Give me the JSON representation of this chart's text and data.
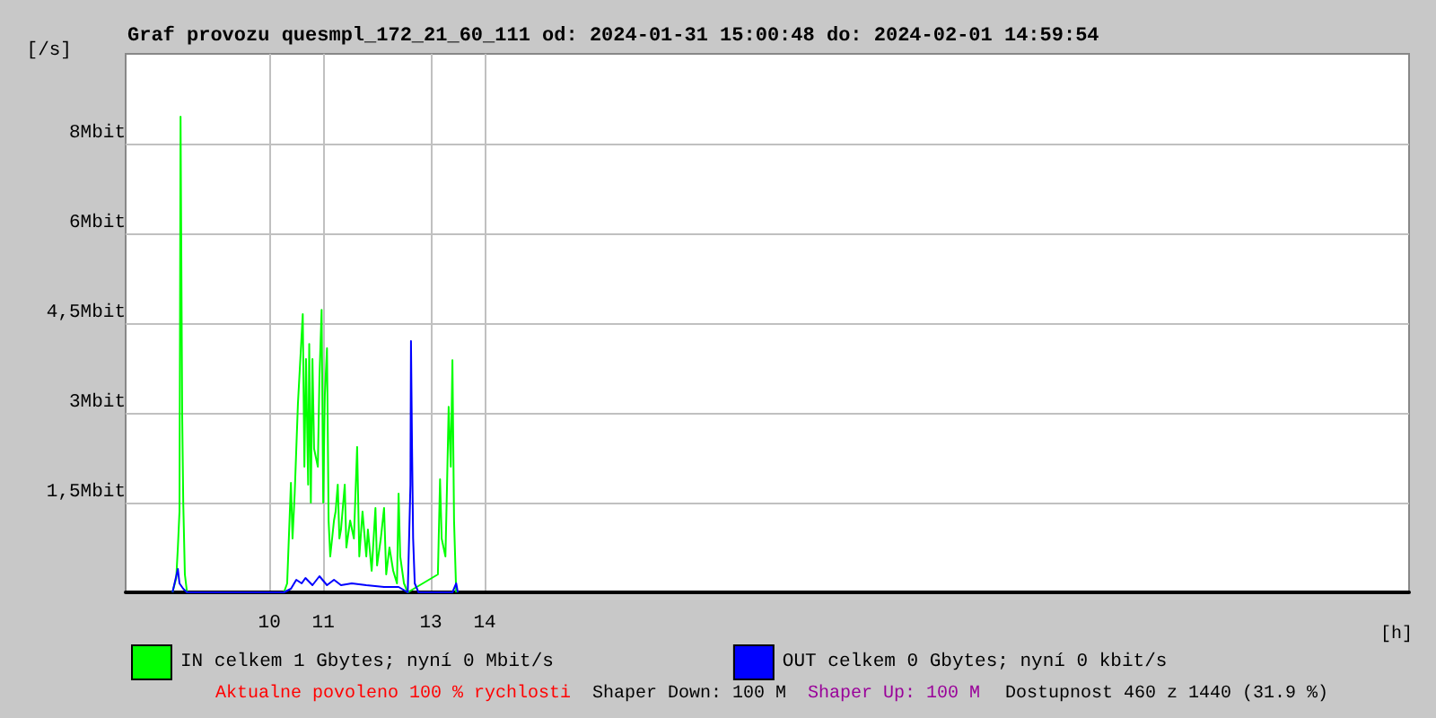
{
  "chart_data": {
    "type": "line",
    "title": "Graf provozu quesmpl_172_21_60_111 od: 2024-01-31 15:00:48 do: 2024-02-01 14:59:54",
    "xlabel": "[h]",
    "ylabel": "[/s]",
    "xlim": [
      7.33,
      31.17
    ],
    "xticks": [
      10,
      11,
      13,
      14
    ],
    "ylim": [
      0,
      9
    ],
    "yticks": [
      {
        "value": 1.5,
        "label": "1,5Mbit"
      },
      {
        "value": 3,
        "label": "3Mbit"
      },
      {
        "value": 4.5,
        "label": "4,5Mbit"
      },
      {
        "value": 6,
        "label": "6Mbit"
      },
      {
        "value": 7.5,
        "label": "8Mbit"
      }
    ],
    "grid": true,
    "legend": "bottom",
    "marker": "none",
    "line_style": "solid",
    "series": [
      {
        "name": "IN celkem 1 Gbytes; nyní 0 Mbit/s",
        "color": "#00ff00",
        "x": [
          8.2,
          8.27,
          8.3,
          8.33,
          8.35,
          8.37,
          8.38,
          8.4,
          8.43,
          8.47,
          10.27,
          10.33,
          10.4,
          10.43,
          10.47,
          10.53,
          10.62,
          10.65,
          10.68,
          10.72,
          10.74,
          10.77,
          10.8,
          10.83,
          10.9,
          10.93,
          10.97,
          11.0,
          11.03,
          11.07,
          11.1,
          11.13,
          11.2,
          11.23,
          11.27,
          11.3,
          11.33,
          11.4,
          11.43,
          11.5,
          11.57,
          11.63,
          11.67,
          11.73,
          11.8,
          11.83,
          11.9,
          11.97,
          12.0,
          12.07,
          12.13,
          12.17,
          12.23,
          12.3,
          12.37,
          12.4,
          12.43,
          12.5,
          12.57,
          13.13,
          13.17,
          13.2,
          13.27,
          13.3,
          13.33,
          13.37,
          13.4,
          13.43,
          13.47
        ],
        "values": [
          0,
          0.24,
          0.75,
          1.35,
          7.95,
          7.95,
          3.0,
          1.5,
          0.3,
          0,
          0,
          0.15,
          1.83,
          0.9,
          1.65,
          3.15,
          4.65,
          2.1,
          3.9,
          1.8,
          4.15,
          1.5,
          3.9,
          2.4,
          2.1,
          3.6,
          4.72,
          1.5,
          3.3,
          4.08,
          1.2,
          0.6,
          1.2,
          1.35,
          1.8,
          0.9,
          1.05,
          1.8,
          0.75,
          1.2,
          0.9,
          2.43,
          0.6,
          1.35,
          0.6,
          1.05,
          0.36,
          1.41,
          0.45,
          0.9,
          1.41,
          0.3,
          0.75,
          0.36,
          0.15,
          1.65,
          0.6,
          0.15,
          0,
          0.3,
          1.89,
          0.9,
          0.6,
          1.8,
          3.1,
          2.1,
          3.88,
          1.2,
          0
        ]
      },
      {
        "name": "OUT celkem 0 Gbytes; nyní 0 kbit/s",
        "color": "#0000ff",
        "x": [
          8.2,
          8.3,
          8.33,
          8.4,
          8.47,
          10.27,
          10.4,
          10.5,
          10.6,
          10.67,
          10.8,
          10.93,
          11.07,
          11.2,
          11.33,
          11.53,
          11.8,
          12.13,
          12.4,
          12.57,
          12.62,
          12.63,
          12.65,
          12.67,
          12.7,
          12.77,
          13.4,
          13.47,
          13.5
        ],
        "values": [
          0,
          0.39,
          0.15,
          0.06,
          0,
          0,
          0.06,
          0.21,
          0.15,
          0.24,
          0.12,
          0.27,
          0.12,
          0.21,
          0.12,
          0.15,
          0.12,
          0.09,
          0.09,
          0,
          1.8,
          4.2,
          2.4,
          0.9,
          0.15,
          0,
          0,
          0.15,
          0
        ]
      }
    ],
    "annotations": [
      "Aktualne povoleno 100 % rychlosti",
      "Shaper Down: 100 M",
      "Shaper Up: 100 M",
      "Dostupnost 460 z 1440 (31.9 %)"
    ]
  }
}
